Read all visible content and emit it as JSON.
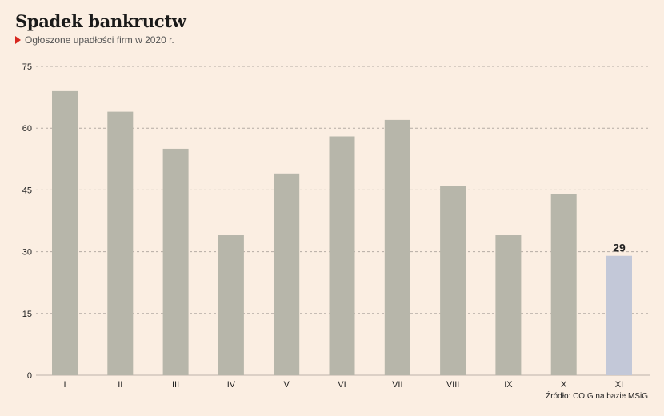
{
  "colors": {
    "background": "#fbeee2",
    "bar": "#b7b6aa",
    "highlight_bar": "#c3c8d8",
    "marker": "#d7261e"
  },
  "chart_data": {
    "type": "bar",
    "title": "Spadek bankructw",
    "subtitle": "Ogłoszone upadłości firm w 2020 r.",
    "source": "Źródło: COIG na bazie MSiG",
    "xlabel": "",
    "ylabel": "",
    "categories": [
      "I",
      "II",
      "III",
      "IV",
      "V",
      "VI",
      "VII",
      "VIII",
      "IX",
      "X",
      "XI"
    ],
    "values": [
      69,
      64,
      55,
      34,
      49,
      58,
      62,
      46,
      34,
      44,
      29
    ],
    "highlight_index": 10,
    "highlight_label": "29",
    "ylim": [
      0,
      75
    ],
    "yticks": [
      0,
      15,
      30,
      45,
      60,
      75
    ],
    "grid": true,
    "legend": "none"
  }
}
